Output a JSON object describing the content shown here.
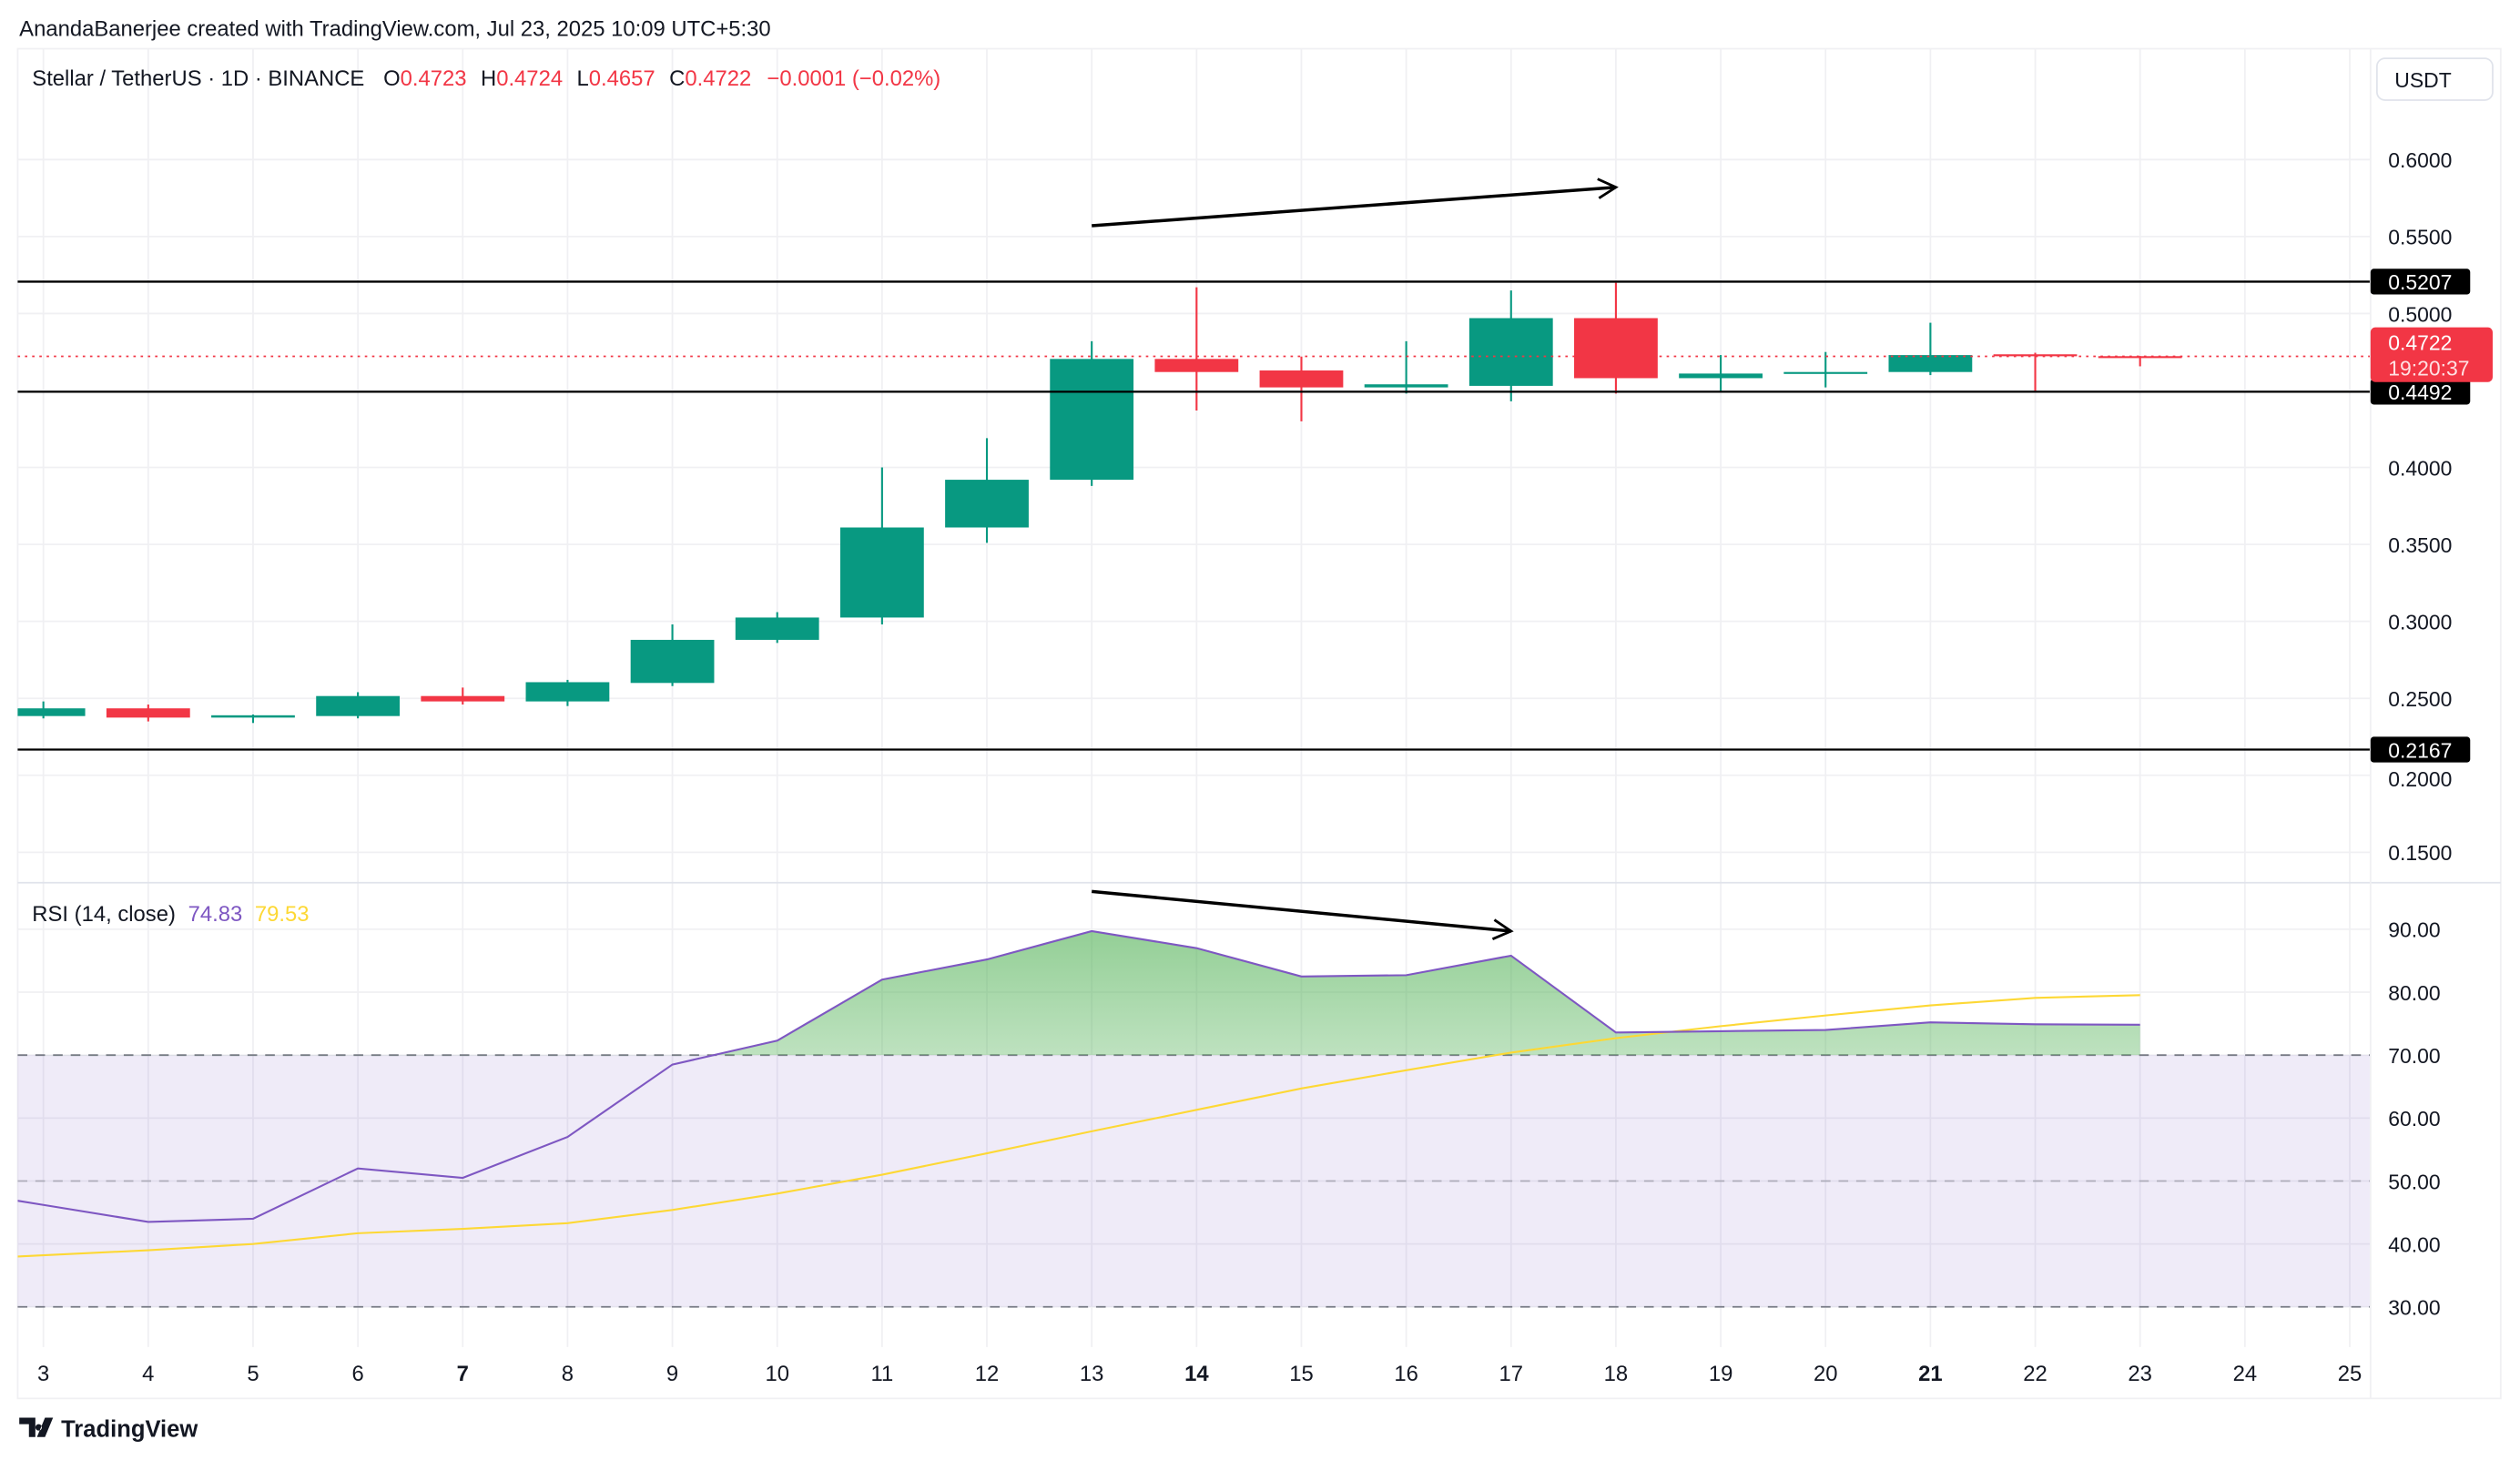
{
  "header": {
    "credit": "AnandaBanerjee created with TradingView.com, Jul 23, 2025 10:09 UTC+5:30",
    "symbol": "Stellar / TetherUS · 1D · BINANCE",
    "o_label": "O",
    "o_value": "0.4723",
    "h_label": "H",
    "h_value": "0.4724",
    "l_label": "L",
    "l_value": "0.4657",
    "c_label": "C",
    "c_value": "0.4722",
    "change": "−0.0001 (−0.02%)"
  },
  "currency_button": "USDT",
  "price_badge": {
    "value": "0.4722",
    "countdown": "19:20:37"
  },
  "horizontal_levels": [
    {
      "price": 0.5207,
      "label": "0.5207"
    },
    {
      "price": 0.4492,
      "label": "0.4492"
    },
    {
      "price": 0.2167,
      "label": "0.2167"
    }
  ],
  "rsi_legend": {
    "label": "RSI (14, close)",
    "rsi_value": "74.83",
    "ma_value": "79.53"
  },
  "branding": "TradingView",
  "colors": {
    "up": "#089981",
    "down": "#f23645",
    "rsi": "#7e57c2",
    "rsi_ma": "#fdd835",
    "band": "#7e57c2"
  },
  "chart_data": [
    {
      "type": "candlestick",
      "title": "Stellar / TetherUS · 1D · BINANCE",
      "x": [
        3,
        4,
        5,
        6,
        7,
        8,
        9,
        10,
        11,
        12,
        13,
        14,
        15,
        16,
        17,
        18,
        19,
        20,
        21,
        22,
        23
      ],
      "x_tick_labels": [
        "3",
        "4",
        "5",
        "6",
        "7",
        "8",
        "9",
        "10",
        "11",
        "12",
        "13",
        "14",
        "15",
        "16",
        "17",
        "18",
        "19",
        "20",
        "21",
        "22",
        "23",
        "24",
        "25"
      ],
      "bold_ticks": [
        "7",
        "14",
        "21"
      ],
      "ohlc": [
        [
          0.2385,
          0.248,
          0.237,
          0.2435
        ],
        [
          0.2435,
          0.246,
          0.235,
          0.2375
        ],
        [
          0.2375,
          0.2395,
          0.234,
          0.239
        ],
        [
          0.2385,
          0.254,
          0.237,
          0.2515
        ],
        [
          0.2515,
          0.257,
          0.246,
          0.248
        ],
        [
          0.248,
          0.262,
          0.245,
          0.2605
        ],
        [
          0.26,
          0.298,
          0.258,
          0.288
        ],
        [
          0.288,
          0.306,
          0.286,
          0.3025
        ],
        [
          0.3025,
          0.4,
          0.298,
          0.361
        ],
        [
          0.361,
          0.419,
          0.351,
          0.392
        ],
        [
          0.392,
          0.482,
          0.388,
          0.4705
        ],
        [
          0.4705,
          0.517,
          0.437,
          0.462
        ],
        [
          0.463,
          0.472,
          0.43,
          0.452
        ],
        [
          0.452,
          0.482,
          0.448,
          0.454
        ],
        [
          0.453,
          0.515,
          0.443,
          0.497
        ],
        [
          0.497,
          0.52,
          0.448,
          0.458
        ],
        [
          0.458,
          0.473,
          0.449,
          0.461
        ],
        [
          0.461,
          0.475,
          0.452,
          0.462
        ],
        [
          0.462,
          0.494,
          0.46,
          0.473
        ],
        [
          0.4735,
          0.4745,
          0.449,
          0.4725
        ],
        [
          0.4723,
          0.4724,
          0.4657,
          0.4722
        ]
      ],
      "ylim": [
        0.13,
        0.6306
      ],
      "y_ticks": [
        "0.6000",
        "0.5500",
        "0.5000",
        "0.4000",
        "0.3500",
        "0.3000",
        "0.2500",
        "0.2000",
        "0.1500"
      ],
      "annotations": [
        {
          "type": "arrow",
          "from": [
            13,
            0.557
          ],
          "to": [
            18,
            0.582
          ]
        }
      ]
    },
    {
      "type": "line",
      "title": "RSI (14, close)",
      "x": [
        3,
        4,
        5,
        6,
        7,
        8,
        9,
        10,
        11,
        12,
        13,
        14,
        15,
        16,
        17,
        18,
        19,
        20,
        21,
        22,
        23
      ],
      "series": [
        {
          "values": [
            46.2,
            43.5,
            44.0,
            52.0,
            50.5,
            57.0,
            68.5,
            72.3,
            82.0,
            85.2,
            89.7,
            87.0,
            82.5,
            82.7,
            85.8,
            73.6,
            73.8,
            74.0,
            75.2,
            74.9,
            74.83
          ]
        },
        {
          "values": [
            38.2,
            39.0,
            40.0,
            41.7,
            42.4,
            43.3,
            45.4,
            48.0,
            51.0,
            54.4,
            57.9,
            61.3,
            64.7,
            67.6,
            70.4,
            72.7,
            74.6,
            76.3,
            77.9,
            79.1,
            79.53
          ]
        }
      ],
      "ylim": [
        23.3,
        97.4
      ],
      "y_ticks": [
        "90.00",
        "80.00",
        "70.00",
        "60.00",
        "50.00",
        "40.00",
        "30.00"
      ],
      "bands": {
        "upper": 70,
        "middle": 50,
        "lower": 30
      },
      "annotations": [
        {
          "type": "arrow",
          "from": [
            13,
            96.0
          ],
          "to": [
            17,
            89.7
          ]
        }
      ]
    }
  ]
}
